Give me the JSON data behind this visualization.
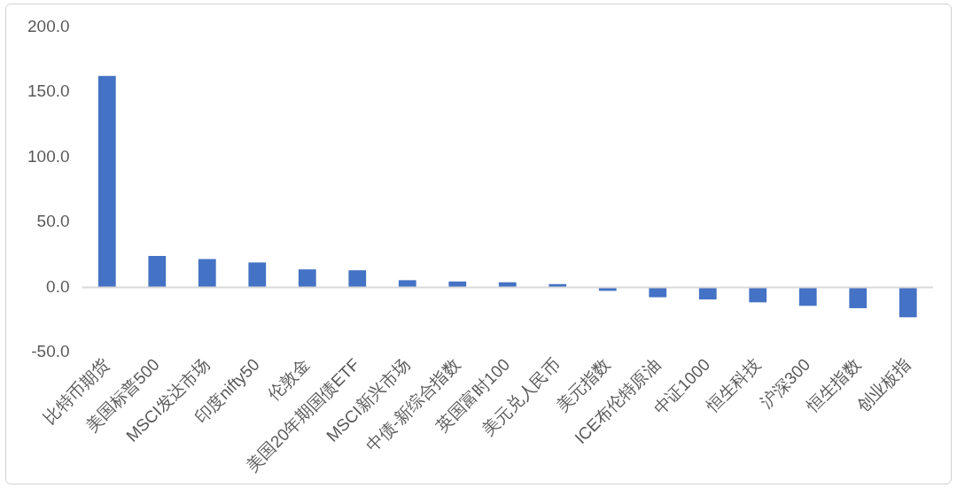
{
  "chart_data": {
    "type": "bar",
    "categories": [
      "比特币期货",
      "美国标普500",
      "MSCI发达市场",
      "印度nifty50",
      "伦敦金",
      "美国20年期国债ETF",
      "MSCI新兴市场",
      "中债-新综合指数",
      "英国富时100",
      "美元兑人民币",
      "美元指数",
      "ICE布伦特原油",
      "中证1000",
      "恒生科技",
      "沪深300",
      "恒生指数",
      "创业板指"
    ],
    "values": [
      162.3,
      24.1,
      21.8,
      19.1,
      13.8,
      13.1,
      5.5,
      4.5,
      3.9,
      2.5,
      -2.7,
      -7.6,
      -9.3,
      -11.5,
      -14.2,
      -16.0,
      -23.0
    ],
    "color": "#4472c4",
    "ylim": [
      -50,
      200
    ],
    "yticks": [
      {
        "value": -50,
        "label": "-50.0"
      },
      {
        "value": 0,
        "label": "0.0"
      },
      {
        "value": 50,
        "label": "50.0"
      },
      {
        "value": 100,
        "label": "100.0"
      },
      {
        "value": 150,
        "label": "150.0"
      },
      {
        "value": 200,
        "label": "200.0"
      }
    ],
    "grid": false,
    "ref_lines": [
      {
        "axis": "y",
        "value": 0,
        "color": "#d9d9d9"
      }
    ],
    "legend": false
  }
}
